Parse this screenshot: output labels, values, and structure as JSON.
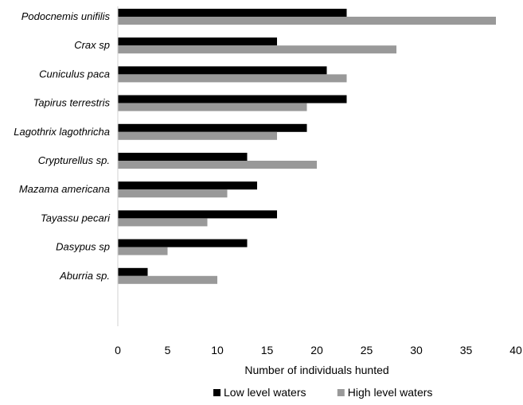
{
  "chart_data": {
    "type": "bar",
    "orientation": "horizontal",
    "categories": [
      "Podocnemis unifilis",
      "Crax sp",
      "Cuniculus paca",
      "Tapirus terrestris",
      "Lagothrix lagothricha",
      "Crypturellus sp.",
      "Mazama americana",
      "Tayassu pecari",
      "Dasypus sp",
      "Aburria sp."
    ],
    "series": [
      {
        "name": "Low level waters",
        "color": "#000000",
        "values": [
          23,
          16,
          21,
          23,
          19,
          13,
          14,
          16,
          13,
          3
        ]
      },
      {
        "name": "High level waters",
        "color": "#999999",
        "values": [
          38,
          28,
          23,
          19,
          16,
          20,
          11,
          9,
          5,
          10
        ]
      }
    ],
    "title": "",
    "xlabel": "Number of individuals hunted",
    "ylabel": "",
    "xlim": [
      0,
      40
    ],
    "xticks": [
      "0",
      "5",
      "10",
      "15",
      "20",
      "25",
      "30",
      "35",
      "40"
    ],
    "grid": false,
    "legend_position": "bottom"
  }
}
